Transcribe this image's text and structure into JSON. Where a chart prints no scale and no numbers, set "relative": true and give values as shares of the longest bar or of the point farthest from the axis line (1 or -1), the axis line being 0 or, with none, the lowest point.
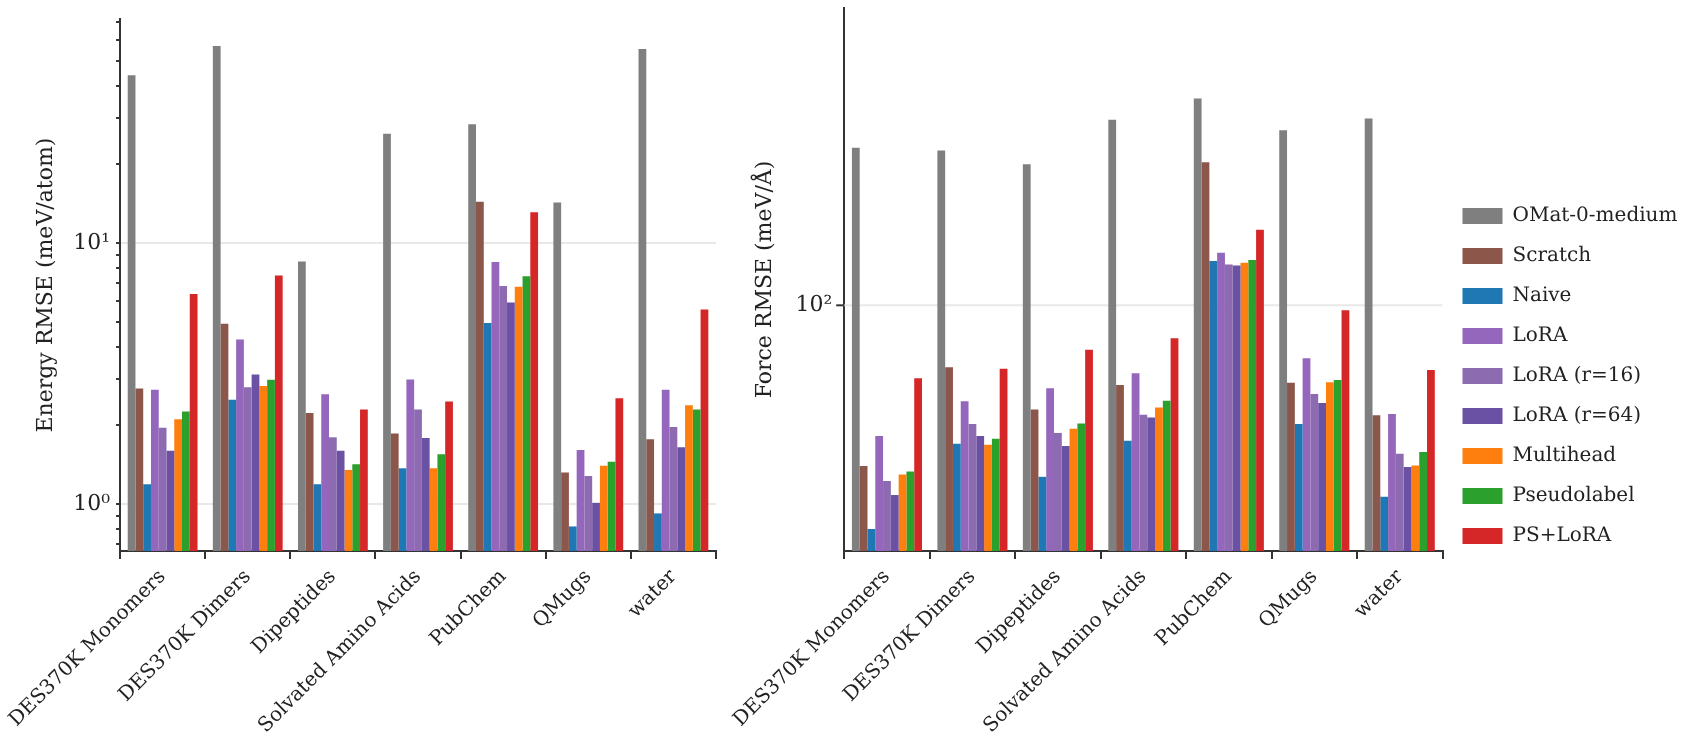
{
  "chart_data": [
    {
      "type": "bar",
      "ylabel": "Energy RMSE (meV/atom)",
      "log": true,
      "grid": "y",
      "legend": false,
      "categories": [
        "DES370K Monomers",
        "DES370K Dimers",
        "Dipeptides",
        "Solvated Amino Acids",
        "PubChem",
        "QMugs",
        "water"
      ],
      "ylim": [
        0.66,
        72
      ],
      "yticks": [
        {
          "value": 0.7,
          "label": null
        },
        {
          "value": 0.8,
          "label": null
        },
        {
          "value": 0.9,
          "label": null
        },
        {
          "value": 1,
          "label": "10⁰"
        },
        {
          "value": 2,
          "label": null
        },
        {
          "value": 3,
          "label": null
        },
        {
          "value": 4,
          "label": null
        },
        {
          "value": 5,
          "label": null
        },
        {
          "value": 6,
          "label": null
        },
        {
          "value": 7,
          "label": null
        },
        {
          "value": 8,
          "label": null
        },
        {
          "value": 9,
          "label": null
        },
        {
          "value": 10,
          "label": "10¹"
        },
        {
          "value": 20,
          "label": null
        },
        {
          "value": 30,
          "label": null
        },
        {
          "value": 40,
          "label": null
        },
        {
          "value": 50,
          "label": null
        },
        {
          "value": 60,
          "label": null
        },
        {
          "value": 70,
          "label": null
        }
      ],
      "series": [
        {
          "color": "#7f7f7f",
          "values": [
            43.9,
            56.9,
            8.5,
            26.2,
            28.5,
            14.3,
            55.3
          ]
        },
        {
          "color": "#8c564b",
          "values": [
            2.77,
            4.9,
            2.23,
            1.86,
            14.4,
            1.32,
            1.77
          ]
        },
        {
          "color": "#1f77b4",
          "values": [
            1.19,
            2.51,
            1.19,
            1.37,
            4.93,
            0.82,
            0.92
          ]
        },
        {
          "color": "#9467bd",
          "values": [
            2.74,
            4.27,
            2.63,
            3.0,
            8.46,
            1.61,
            2.74
          ]
        },
        {
          "color": "#8c6bb1",
          "values": [
            1.96,
            2.8,
            1.8,
            2.3,
            6.84,
            1.28,
            1.97
          ]
        },
        {
          "color": "#6a51a3",
          "values": [
            1.6,
            3.13,
            1.6,
            1.79,
            5.92,
            1.01,
            1.65
          ]
        },
        {
          "color": "#ff7f0e",
          "values": [
            2.11,
            2.83,
            1.35,
            1.37,
            6.8,
            1.4,
            2.39
          ]
        },
        {
          "color": "#2ca02c",
          "values": [
            2.26,
            2.99,
            1.42,
            1.55,
            7.46,
            1.45,
            2.3
          ]
        },
        {
          "color": "#d62728",
          "values": [
            6.38,
            7.5,
            2.3,
            2.47,
            13.1,
            2.54,
            5.56
          ]
        }
      ]
    },
    {
      "type": "bar",
      "ylabel": "Force RMSE (meV/Å)",
      "relative": true,
      "legend": "right",
      "categories": [
        "DES370K Monomers",
        "DES370K Dimers",
        "Dipeptides",
        "Solvated Amino Acids",
        "PubChem",
        "QMugs",
        "water"
      ],
      "ref_lines": [
        {
          "axis": "y",
          "value": 0.543,
          "color": "#e8e8e8"
        }
      ],
      "annotations": [
        "10²"
      ],
      "series": [
        {
          "name": "OMat-0-medium",
          "color": "#7f7f7f",
          "values": [
            0.891,
            0.885,
            0.855,
            0.953,
            1,
            0.93,
            0.956
          ]
        },
        {
          "name": "Scratch",
          "color": "#8c564b",
          "values": [
            0.188,
            0.406,
            0.313,
            0.367,
            0.859,
            0.372,
            0.3
          ]
        },
        {
          "name": "Naive",
          "color": "#1f77b4",
          "values": [
            0.049,
            0.237,
            0.164,
            0.244,
            0.641,
            0.281,
            0.12
          ]
        },
        {
          "name": "LoRA",
          "color": "#9467bd",
          "values": [
            0.254,
            0.331,
            0.36,
            0.393,
            0.659,
            0.426,
            0.303
          ]
        },
        {
          "name": "LoRA (r=16)",
          "color": "#8c6bb1",
          "values": [
            0.155,
            0.281,
            0.261,
            0.301,
            0.633,
            0.347,
            0.215
          ]
        },
        {
          "name": "LoRA (r=64)",
          "color": "#6a51a3",
          "values": [
            0.124,
            0.254,
            0.232,
            0.295,
            0.631,
            0.327,
            0.186
          ]
        },
        {
          "name": "Multihead",
          "color": "#ff7f0e",
          "values": [
            0.169,
            0.235,
            0.27,
            0.317,
            0.637,
            0.373,
            0.189
          ]
        },
        {
          "name": "Pseudolabel",
          "color": "#2ca02c",
          "values": [
            0.176,
            0.248,
            0.282,
            0.332,
            0.643,
            0.378,
            0.219
          ]
        },
        {
          "name": "PS+LoRA",
          "color": "#d62728",
          "values": [
            0.382,
            0.403,
            0.445,
            0.47,
            0.71,
            0.532,
            0.4
          ]
        }
      ]
    }
  ]
}
